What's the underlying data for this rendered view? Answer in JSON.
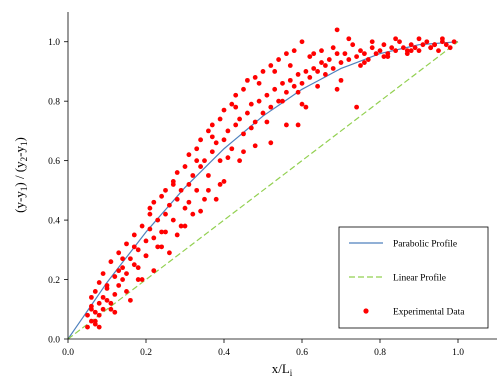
{
  "chart_data": {
    "type": "scatter",
    "title": "",
    "xlabel": {
      "main": "x/L",
      "sub": "i"
    },
    "ylabel": "(y-y1) / (y2-y1)",
    "ylabel_parts": [
      {
        "t": "(y-y",
        "s": false
      },
      {
        "t": "1",
        "s": true
      },
      {
        "t": ") / (y",
        "s": false
      },
      {
        "t": "2",
        "s": true
      },
      {
        "t": "-y",
        "s": false
      },
      {
        "t": "1",
        "s": true
      },
      {
        "t": ")",
        "s": false
      }
    ],
    "xlim": [
      0,
      1.1
    ],
    "ylim": [
      0,
      1.1
    ],
    "xticks": [
      0,
      0.2,
      0.4,
      0.6,
      0.8,
      1.0
    ],
    "yticks": [
      0,
      0.2,
      0.4,
      0.6,
      0.8,
      1.0
    ],
    "xtick_labels": [
      "0.0",
      "0.2",
      "0.4",
      "0.6",
      "0.8",
      "1.0"
    ],
    "ytick_labels": [
      "0.0",
      "0.2",
      "0.4",
      "0.6",
      "0.8",
      "1.0"
    ],
    "grid": false,
    "legend_position": "bottom-right",
    "series": [
      {
        "name": "Parabolic Profile",
        "kind": "line",
        "style": "solid",
        "color": "#4f81bd",
        "x": [
          0,
          0.1,
          0.2,
          0.3,
          0.4,
          0.5,
          0.6,
          0.7,
          0.8,
          0.9,
          1.0
        ],
        "y": [
          0,
          0.19,
          0.36,
          0.51,
          0.64,
          0.75,
          0.84,
          0.91,
          0.96,
          0.99,
          1.0
        ]
      },
      {
        "name": "Linear Profile",
        "kind": "line",
        "style": "dashed",
        "color": "#92d050",
        "x": [
          0,
          1.0
        ],
        "y": [
          0,
          1.0
        ]
      },
      {
        "name": "Experimental Data",
        "kind": "scatter",
        "color": "#ff0000",
        "x": [
          0.05,
          0.05,
          0.06,
          0.06,
          0.06,
          0.07,
          0.07,
          0.07,
          0.08,
          0.08,
          0.08,
          0.09,
          0.09,
          0.1,
          0.1,
          0.11,
          0.11,
          0.12,
          0.12,
          0.13,
          0.13,
          0.14,
          0.14,
          0.15,
          0.15,
          0.16,
          0.17,
          0.17,
          0.18,
          0.18,
          0.19,
          0.2,
          0.2,
          0.21,
          0.21,
          0.22,
          0.22,
          0.23,
          0.24,
          0.24,
          0.25,
          0.25,
          0.26,
          0.27,
          0.27,
          0.28,
          0.28,
          0.29,
          0.3,
          0.3,
          0.31,
          0.31,
          0.32,
          0.33,
          0.33,
          0.34,
          0.34,
          0.35,
          0.36,
          0.36,
          0.37,
          0.37,
          0.38,
          0.39,
          0.39,
          0.4,
          0.4,
          0.41,
          0.42,
          0.42,
          0.43,
          0.43,
          0.44,
          0.45,
          0.45,
          0.46,
          0.46,
          0.47,
          0.48,
          0.48,
          0.49,
          0.5,
          0.5,
          0.51,
          0.52,
          0.52,
          0.53,
          0.54,
          0.54,
          0.55,
          0.56,
          0.56,
          0.57,
          0.58,
          0.58,
          0.59,
          0.6,
          0.6,
          0.61,
          0.62,
          0.62,
          0.63,
          0.64,
          0.65,
          0.65,
          0.66,
          0.67,
          0.68,
          0.68,
          0.69,
          0.7,
          0.71,
          0.72,
          0.73,
          0.74,
          0.75,
          0.76,
          0.77,
          0.78,
          0.79,
          0.8,
          0.81,
          0.82,
          0.83,
          0.84,
          0.85,
          0.86,
          0.87,
          0.88,
          0.89,
          0.9,
          0.91,
          0.92,
          0.93,
          0.94,
          0.95,
          0.96,
          0.97,
          0.98,
          0.99,
          0.07,
          0.09,
          0.11,
          0.13,
          0.15,
          0.17,
          0.19,
          0.21,
          0.23,
          0.25,
          0.27,
          0.29,
          0.31,
          0.33,
          0.35,
          0.37,
          0.39,
          0.41,
          0.43,
          0.45,
          0.47,
          0.49,
          0.51,
          0.53,
          0.55,
          0.57,
          0.59,
          0.61,
          0.63,
          0.66,
          0.69,
          0.72,
          0.75,
          0.78,
          0.81,
          0.84,
          0.87,
          0.9,
          0.93,
          0.96,
          0.06,
          0.08,
          0.1,
          0.12,
          0.14,
          0.16,
          0.18,
          0.2,
          0.22,
          0.24,
          0.26,
          0.28,
          0.3,
          0.32,
          0.34,
          0.36,
          0.38,
          0.4,
          0.44,
          0.48,
          0.52,
          0.56,
          0.6,
          0.64,
          0.7,
          0.76,
          0.82,
          0.88,
          0.94,
          0.59,
          0.69,
          0.74
        ],
        "y": [
          0.04,
          0.08,
          0.06,
          0.1,
          0.14,
          0.05,
          0.09,
          0.16,
          0.08,
          0.12,
          0.19,
          0.1,
          0.22,
          0.13,
          0.17,
          0.12,
          0.26,
          0.15,
          0.21,
          0.18,
          0.29,
          0.2,
          0.24,
          0.22,
          0.32,
          0.27,
          0.25,
          0.35,
          0.3,
          0.24,
          0.38,
          0.33,
          0.28,
          0.37,
          0.42,
          0.34,
          0.46,
          0.4,
          0.36,
          0.48,
          0.42,
          0.5,
          0.45,
          0.4,
          0.53,
          0.47,
          0.56,
          0.5,
          0.44,
          0.58,
          0.52,
          0.62,
          0.55,
          0.5,
          0.64,
          0.58,
          0.67,
          0.6,
          0.55,
          0.7,
          0.63,
          0.72,
          0.66,
          0.6,
          0.74,
          0.67,
          0.77,
          0.7,
          0.64,
          0.79,
          0.72,
          0.82,
          0.74,
          0.69,
          0.84,
          0.76,
          0.87,
          0.79,
          0.73,
          0.88,
          0.8,
          0.76,
          0.9,
          0.82,
          0.78,
          0.92,
          0.84,
          0.8,
          0.94,
          0.86,
          0.83,
          0.96,
          0.87,
          0.85,
          0.97,
          0.89,
          0.86,
          1.0,
          0.9,
          0.88,
          0.95,
          0.91,
          0.9,
          0.93,
          0.97,
          0.92,
          0.94,
          0.91,
          0.98,
          1.04,
          0.93,
          0.96,
          0.94,
          0.99,
          0.95,
          0.97,
          0.96,
          0.94,
          0.98,
          0.96,
          0.97,
          0.99,
          0.96,
          0.98,
          0.97,
          1.0,
          0.98,
          0.96,
          0.99,
          0.98,
          0.97,
          0.99,
          1.0,
          0.98,
          0.99,
          0.97,
          1.0,
          0.99,
          0.98,
          1.0,
          0.06,
          0.14,
          0.1,
          0.23,
          0.16,
          0.31,
          0.2,
          0.44,
          0.31,
          0.36,
          0.52,
          0.38,
          0.46,
          0.6,
          0.47,
          0.68,
          0.52,
          0.61,
          0.78,
          0.63,
          0.71,
          0.86,
          0.73,
          0.9,
          0.8,
          0.92,
          0.83,
          0.78,
          0.96,
          0.89,
          0.96,
          1.01,
          0.92,
          1.0,
          0.95,
          1.01,
          0.97,
          1.01,
          0.98,
          1.01,
          0.11,
          0.04,
          0.18,
          0.09,
          0.27,
          0.13,
          0.2,
          0.28,
          0.23,
          0.31,
          0.29,
          0.35,
          0.38,
          0.42,
          0.43,
          0.5,
          0.47,
          0.53,
          0.6,
          0.65,
          0.66,
          0.72,
          0.79,
          0.85,
          0.87,
          0.93,
          0.95,
          0.97,
          0.99,
          0.72,
          0.84,
          0.78
        ]
      }
    ]
  }
}
